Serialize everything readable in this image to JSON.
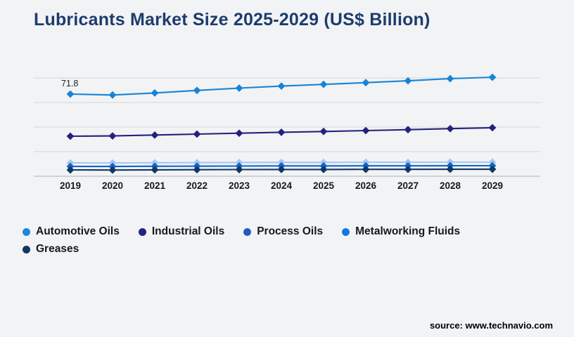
{
  "page": {
    "background": "#f2f3f5"
  },
  "header": {
    "title": "Lubricants Market Size 2025-2029 (US$ Billion)",
    "title_color": "#1d3c6e"
  },
  "source": {
    "label": "source: www.technavio.com"
  },
  "chart_data": {
    "type": "line",
    "title": "Lubricants Market Size 2025-2029 (US$ Billion)",
    "x": [
      "2019",
      "2020",
      "2021",
      "2022",
      "2023",
      "2024",
      "2025",
      "2026",
      "2027",
      "2028",
      "2029"
    ],
    "series": [
      {
        "name": "Automotive Oils",
        "legend_color": "#1d87dc",
        "line_color": "#1784d6",
        "values": [
          71.8,
          71.0,
          72.8,
          75.0,
          77.0,
          78.8,
          80.3,
          81.8,
          83.4,
          85.3,
          86.5
        ]
      },
      {
        "name": "Industrial Oils",
        "legend_color": "#22227f",
        "line_color": "#23237d",
        "values": [
          35.0,
          35.2,
          36.0,
          36.8,
          37.6,
          38.4,
          39.1,
          39.9,
          40.7,
          41.6,
          42.4
        ]
      },
      {
        "name": "Process Oils",
        "legend_color": "#1e5ec4",
        "line_color": "#a6c8f0",
        "values": [
          11.7,
          11.6,
          11.8,
          11.9,
          12.0,
          12.1,
          12.1,
          12.2,
          12.2,
          12.3,
          12.3
        ]
      },
      {
        "name": "Metalworking Fluids",
        "legend_color": "#0f7ae0",
        "line_color": "#1563cc",
        "values": [
          8.6,
          8.5,
          8.7,
          8.8,
          8.9,
          9.0,
          9.0,
          9.1,
          9.1,
          9.2,
          9.2
        ]
      },
      {
        "name": "Greases",
        "legend_color": "#11395f",
        "line_color": "#0d3a63",
        "values": [
          5.5,
          5.4,
          5.6,
          5.7,
          5.8,
          5.9,
          5.9,
          6.0,
          6.0,
          6.1,
          6.1
        ]
      }
    ],
    "annotations": [
      {
        "text": "71.8",
        "series": "Automotive Oils",
        "x": "2019"
      }
    ],
    "ylim": [
      0,
      86
    ],
    "grid": true,
    "y_axis_labels": "hidden",
    "legend_position": "bottom-left",
    "gridline_color": "#d8dbe0",
    "axisline_color": "#c3c7cd",
    "tick_label_color": "#16181c",
    "annotation_color": "#222222"
  }
}
